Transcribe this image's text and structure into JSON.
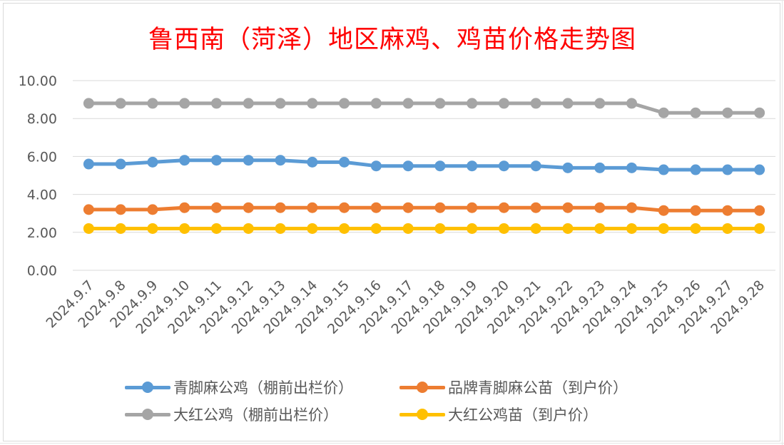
{
  "chart_data": {
    "type": "line",
    "title": "鲁西南（菏泽）地区麻鸡、鸡苗价格走势图",
    "xlabel": "",
    "ylabel": "",
    "ylim": [
      0,
      10
    ],
    "yticks": [
      "0.00",
      "2.00",
      "4.00",
      "6.00",
      "8.00",
      "10.00"
    ],
    "grid": true,
    "legend_position": "bottom",
    "categories": [
      "2024.9.7",
      "2024.9.8",
      "2024.9.9",
      "2024.9.10",
      "2024.9.11",
      "2024.9.12",
      "2024.9.13",
      "2024.9.14",
      "2024.9.15",
      "2024.9.16",
      "2024.9.17",
      "2024.9.18",
      "2024.9.19",
      "2024.9.20",
      "2024.9.21",
      "2024.9.22",
      "2024.9.23",
      "2024.9.24",
      "2024.9.25",
      "2024.9.26",
      "2024.9.27",
      "2024.9.28"
    ],
    "series": [
      {
        "name": "青脚麻公鸡（棚前出栏价）",
        "color": "#5b9bd5",
        "values": [
          5.6,
          5.6,
          5.7,
          5.8,
          5.8,
          5.8,
          5.8,
          5.7,
          5.7,
          5.5,
          5.5,
          5.5,
          5.5,
          5.5,
          5.5,
          5.4,
          5.4,
          5.4,
          5.3,
          5.3,
          5.3,
          5.3
        ]
      },
      {
        "name": "品牌青脚麻公苗（到户价）",
        "color": "#ed7d31",
        "values": [
          3.2,
          3.2,
          3.2,
          3.3,
          3.3,
          3.3,
          3.3,
          3.3,
          3.3,
          3.3,
          3.3,
          3.3,
          3.3,
          3.3,
          3.3,
          3.3,
          3.3,
          3.3,
          3.15,
          3.15,
          3.15,
          3.15
        ]
      },
      {
        "name": "大红公鸡（棚前出栏价）",
        "color": "#a5a5a5",
        "values": [
          8.8,
          8.8,
          8.8,
          8.8,
          8.8,
          8.8,
          8.8,
          8.8,
          8.8,
          8.8,
          8.8,
          8.8,
          8.8,
          8.8,
          8.8,
          8.8,
          8.8,
          8.8,
          8.3,
          8.3,
          8.3,
          8.3
        ]
      },
      {
        "name": "大红公鸡苗（到户价）",
        "color": "#ffc000",
        "values": [
          2.2,
          2.2,
          2.2,
          2.2,
          2.2,
          2.2,
          2.2,
          2.2,
          2.2,
          2.2,
          2.2,
          2.2,
          2.2,
          2.2,
          2.2,
          2.2,
          2.2,
          2.2,
          2.2,
          2.2,
          2.2,
          2.2
        ]
      }
    ]
  }
}
